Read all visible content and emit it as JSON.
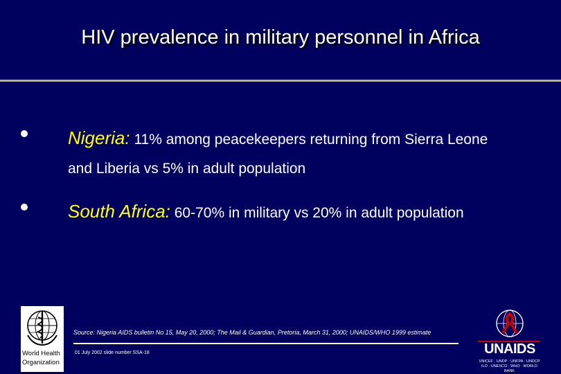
{
  "title": "HIV prevalence in military personnel in Africa",
  "bullets": [
    {
      "country": "Nigeria:",
      "text": "11% among peacekeepers returning from Sierra Leone and Liberia vs 5% in adult population"
    },
    {
      "country": "South Africa:",
      "text": "60-70% in military vs 20% in adult population"
    }
  ],
  "source": "Source:   Nigeria AIDS bulletin No 15, May 20, 2000; The Mail & Guardian, Pretoria, March 31, 2000; UNAIDS/WHO 1999 estimate",
  "slide_number": "01 July 2002 slide number SSA-18",
  "who_logo": {
    "line1": "World Health",
    "line2": "Organization",
    "icon": "who-emblem-icon"
  },
  "unaids_logo": {
    "name": "UNAIDS",
    "line1": "UNICEF · UNDP · UNFPA · UNDCP",
    "line2": "ILO · UNESCO · WHO · WORLD BANK",
    "icon": "red-ribbon-icon"
  },
  "colors": {
    "background": "#00005f",
    "rule": "#c8b070",
    "country": "#ffff00",
    "ribbon": "#cc0000"
  }
}
